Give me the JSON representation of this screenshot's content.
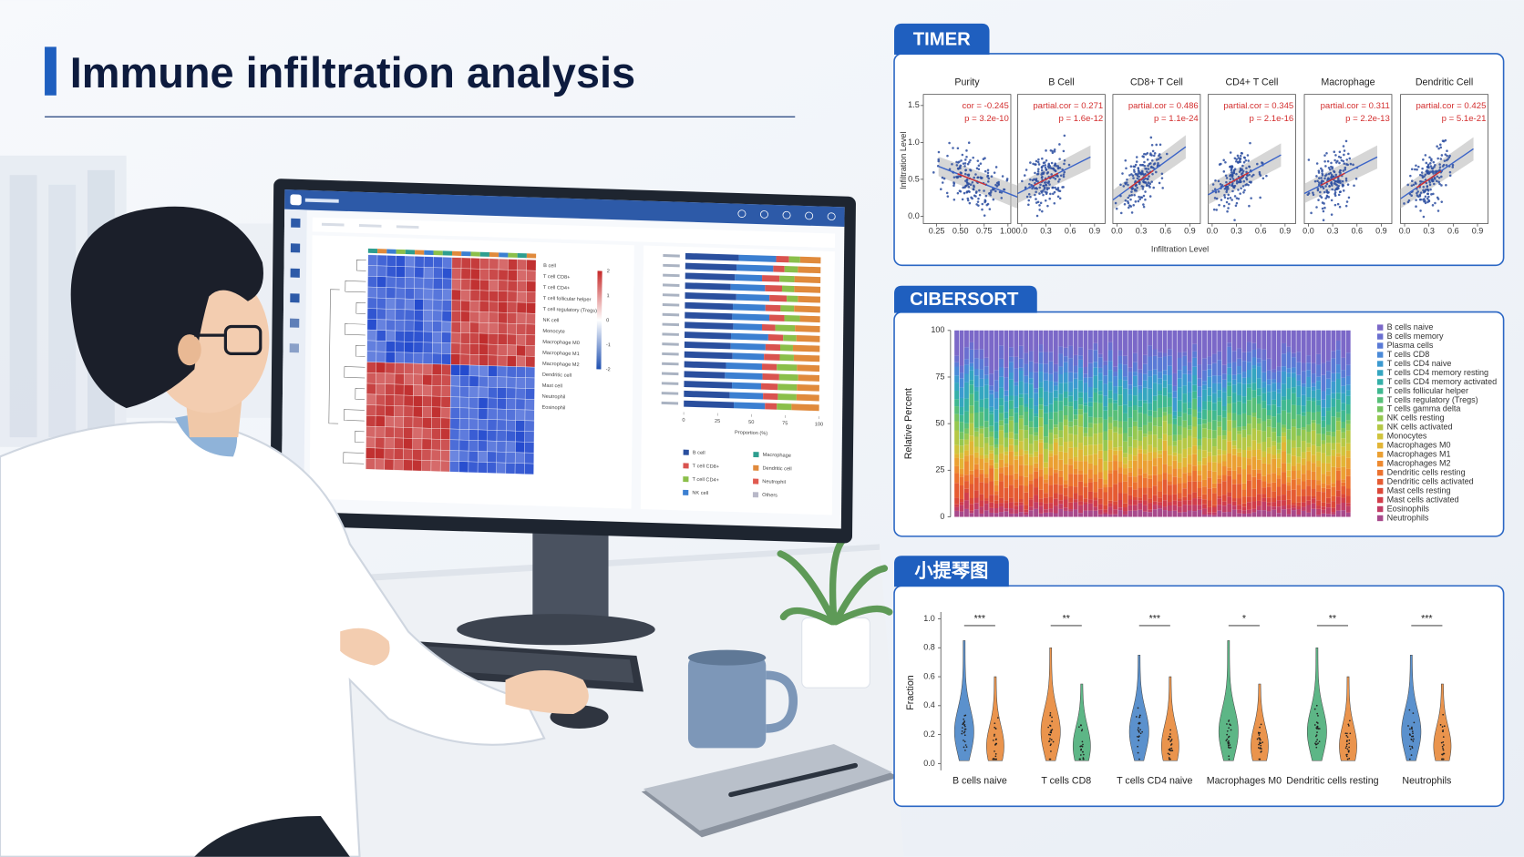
{
  "header": {
    "title": "Immune infiltration analysis"
  },
  "monitor": {
    "heatmap": {
      "row_labels": [
        "B cell",
        "T cell CD8+",
        "T cell CD4+",
        "T cell follicular helper",
        "T cell regulatory (Tregs)",
        "NK cell",
        "Monocyte",
        "Macrophage M0",
        "Macrophage M1",
        "Macrophage M2",
        "Dendritic cell",
        "Mast cell",
        "Neutrophil",
        "Eosinophil"
      ],
      "colorbar_ticks": [
        2,
        1,
        0,
        -1,
        -2
      ]
    },
    "bar_chart": {
      "xlim": [
        0,
        100
      ],
      "xticks": [
        0,
        25,
        50,
        75,
        100
      ],
      "xlabel": "Proportion (%)",
      "legend": [
        {
          "name": "B cell",
          "color": "#2a4f9e"
        },
        {
          "name": "T cell CD8+",
          "color": "#d9534f"
        },
        {
          "name": "T cell CD4+",
          "color": "#8bbf4a"
        },
        {
          "name": "NK cell",
          "color": "#3b7fd1"
        },
        {
          "name": "Macrophage",
          "color": "#2e9e8f"
        },
        {
          "name": "Dendritic cell",
          "color": "#e08a3c"
        },
        {
          "name": "Neutrophil",
          "color": "#e05a4f"
        },
        {
          "name": "Others",
          "color": "#b8b8c8"
        }
      ]
    }
  },
  "timer": {
    "title": "TIMER",
    "ylabel": "Infiltration Level",
    "xlabel": "Infiltration Level",
    "ylim": [
      -0.1,
      1.65
    ],
    "yticks": [
      {
        "value": 0,
        "label": "0.0"
      },
      {
        "value": 0.5,
        "label": "0.5"
      },
      {
        "value": 1,
        "label": "1.0"
      },
      {
        "value": 1.5,
        "label": "1.5"
      }
    ],
    "point_color": "#2c4ea0",
    "panels": [
      {
        "title": "Purity",
        "cor": "cor = -0.245",
        "p": "p = 3.2e-10",
        "xlim": [
          0.11,
          1.03
        ],
        "xticks": [
          0.25,
          {
            "value": 0.5,
            "label": "0.50"
          },
          0.75,
          {
            "value": 1,
            "label": "1.00"
          }
        ]
      },
      {
        "title": "B Cell",
        "cor": "partial.cor = 0.271",
        "p": "p = 1.6e-12",
        "xlim": [
          -0.05,
          1.03
        ],
        "xticks": [
          {
            "value": 0,
            "label": "0.0"
          },
          0.3,
          0.6,
          0.9
        ]
      },
      {
        "title": "CD8+ T Cell",
        "cor": "partial.cor = 0.486",
        "p": "p = 1.1e-24",
        "xlim": [
          -0.05,
          1.03
        ],
        "xticks": [
          {
            "value": 0,
            "label": "0.0"
          },
          0.3,
          0.6,
          0.9
        ]
      },
      {
        "title": "CD4+ T Cell",
        "cor": "partial.cor = 0.345",
        "p": "p = 2.1e-16",
        "xlim": [
          -0.05,
          1.03
        ],
        "xticks": [
          {
            "value": 0,
            "label": "0.0"
          },
          0.3,
          0.6,
          0.9
        ]
      },
      {
        "title": "Macrophage",
        "cor": "partial.cor = 0.311",
        "p": "p = 2.2e-13",
        "xlim": [
          -0.05,
          1.03
        ],
        "xticks": [
          {
            "value": 0,
            "label": "0.0"
          },
          0.3,
          0.6,
          0.9
        ]
      },
      {
        "title": "Dendritic Cell",
        "cor": "partial.cor = 0.425",
        "p": "p = 5.1e-21",
        "xlim": [
          -0.05,
          1.03
        ],
        "xticks": [
          {
            "value": 0,
            "label": "0.0"
          },
          0.3,
          0.6,
          0.9
        ]
      }
    ]
  },
  "cibersort": {
    "title": "CIBERSORT",
    "ylabel": "Relative Percent",
    "ylim": [
      0,
      100
    ],
    "yticks": [
      0,
      25,
      50,
      75,
      100
    ],
    "legend": [
      {
        "name": "B cells naive",
        "color": "#7b68c8"
      },
      {
        "name": "B cells memory",
        "color": "#6a6fd0"
      },
      {
        "name": "Plasma cells",
        "color": "#5a7ad6"
      },
      {
        "name": "T cells CD8",
        "color": "#4a8ad8"
      },
      {
        "name": "T cells CD4 naive",
        "color": "#3c9ad0"
      },
      {
        "name": "T cells CD4 memory resting",
        "color": "#35a6c0"
      },
      {
        "name": "T cells CD4 memory activated",
        "color": "#34b0a8"
      },
      {
        "name": "T cells follicular helper",
        "color": "#3fb890"
      },
      {
        "name": "T cells regulatory (Tregs)",
        "color": "#57bf78"
      },
      {
        "name": "T cells gamma delta",
        "color": "#75c462"
      },
      {
        "name": "NK cells resting",
        "color": "#95c850"
      },
      {
        "name": "NK cells activated",
        "color": "#b5c845"
      },
      {
        "name": "Monocytes",
        "color": "#d0c43c"
      },
      {
        "name": "Macrophages M0",
        "color": "#e2b535"
      },
      {
        "name": "Macrophages M1",
        "color": "#eba032"
      },
      {
        "name": "Macrophages M2",
        "color": "#ee8a30"
      },
      {
        "name": "Dendritic cells resting",
        "color": "#ec722f"
      },
      {
        "name": "Dendritic cells activated",
        "color": "#e55b32"
      },
      {
        "name": "Mast cells resting",
        "color": "#db4838"
      },
      {
        "name": "Mast cells activated",
        "color": "#d13d4a"
      },
      {
        "name": "Eosinophils",
        "color": "#c13d66"
      },
      {
        "name": "Neutrophils",
        "color": "#a84a8c"
      }
    ]
  },
  "violin": {
    "title": "小提琴图",
    "ylabel": "Fraction",
    "ylim": [
      -0.05,
      1.05
    ],
    "yticks": [
      {
        "value": 0,
        "label": "0.0"
      },
      {
        "value": 0.2,
        "label": "0.2"
      },
      {
        "value": 0.4,
        "label": "0.4"
      },
      {
        "value": 0.6,
        "label": "0.6"
      },
      {
        "value": 0.8,
        "label": "0.8"
      },
      {
        "value": 1,
        "label": "1.0"
      }
    ],
    "categories": [
      "B cells naive",
      "T cells CD8",
      "T cells CD4 naive",
      "Macrophages M0",
      "Dendritic cells resting",
      "Neutrophils"
    ],
    "significance": [
      "***",
      "**",
      "***",
      "*",
      "**",
      "***"
    ],
    "colors": [
      [
        "#4a86c8",
        "#e8893a"
      ],
      [
        "#e8893a",
        "#4caf7a"
      ],
      [
        "#4a86c8",
        "#e8893a"
      ],
      [
        "#4caf7a",
        "#e8893a"
      ],
      [
        "#4caf7a",
        "#e8893a"
      ],
      [
        "#4a86c8",
        "#e8893a"
      ]
    ]
  }
}
